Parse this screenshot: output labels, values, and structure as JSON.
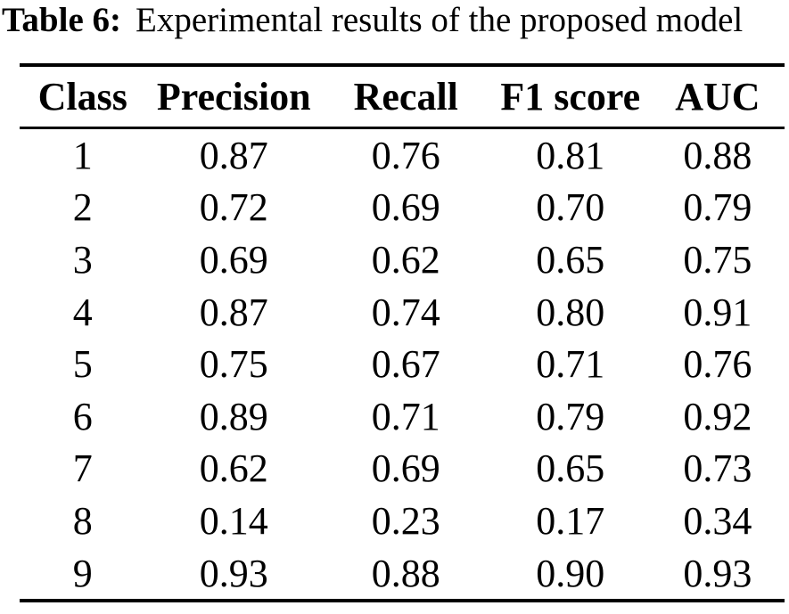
{
  "colors": {
    "background": "#ffffff",
    "text": "#000000",
    "rule": "#000000"
  },
  "caption": {
    "label": "Table 6:",
    "text": "Experimental results of the proposed model"
  },
  "table": {
    "headers": [
      "Class",
      "Precision",
      "Recall",
      "F1 score",
      "AUC"
    ],
    "rows": [
      [
        "1",
        "0.87",
        "0.76",
        "0.81",
        "0.88"
      ],
      [
        "2",
        "0.72",
        "0.69",
        "0.70",
        "0.79"
      ],
      [
        "3",
        "0.69",
        "0.62",
        "0.65",
        "0.75"
      ],
      [
        "4",
        "0.87",
        "0.74",
        "0.80",
        "0.91"
      ],
      [
        "5",
        "0.75",
        "0.67",
        "0.71",
        "0.76"
      ],
      [
        "6",
        "0.89",
        "0.71",
        "0.79",
        "0.92"
      ],
      [
        "7",
        "0.62",
        "0.69",
        "0.65",
        "0.73"
      ],
      [
        "8",
        "0.14",
        "0.23",
        "0.17",
        "0.34"
      ],
      [
        "9",
        "0.93",
        "0.88",
        "0.90",
        "0.93"
      ]
    ]
  }
}
